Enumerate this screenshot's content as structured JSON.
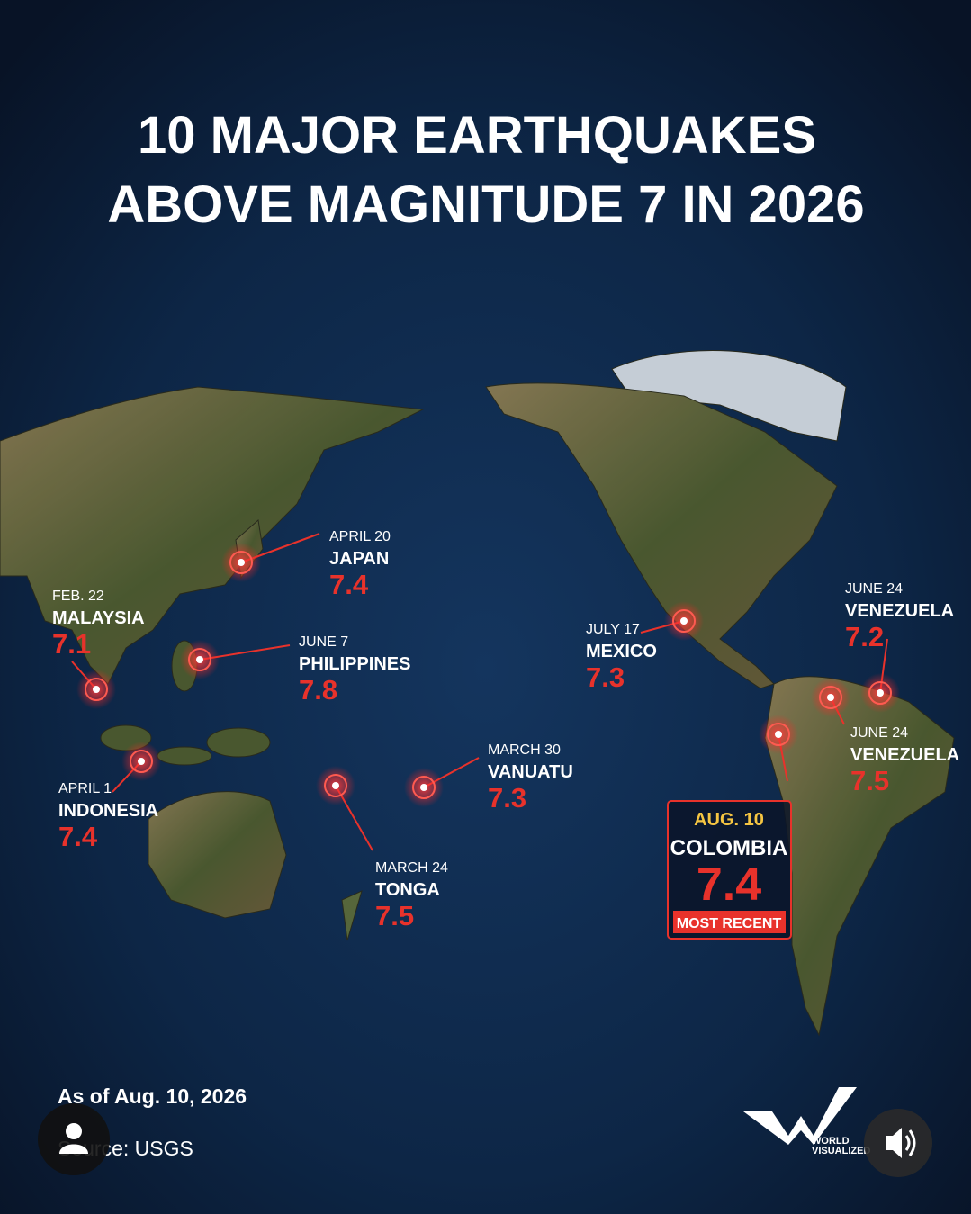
{
  "title": [
    "10 MAJOR EARTHQUAKES",
    "ABOVE MAGNITUDE 7 IN 2026"
  ],
  "quakes": [
    {
      "date": "APRIL 20",
      "country": "JAPAN",
      "magnitude": 7.4
    },
    {
      "date": "FEB. 22",
      "country": "MALAYSIA",
      "magnitude": 7.1
    },
    {
      "date": "JUNE 7",
      "country": "PHILIPPINES",
      "magnitude": 7.8
    },
    {
      "date": "APRIL 1",
      "country": "INDONESIA",
      "magnitude": 7.4
    },
    {
      "date": "MARCH 24",
      "country": "TONGA",
      "magnitude": 7.5
    },
    {
      "date": "MARCH 30",
      "country": "VANUATU",
      "magnitude": 7.3
    },
    {
      "date": "JULY 17",
      "country": "MEXICO",
      "magnitude": 7.3
    },
    {
      "date": "JUNE 24",
      "country": "VENEZUELA",
      "magnitude": 7.2
    },
    {
      "date": "JUNE 24",
      "country": "VENEZUELA",
      "magnitude": 7.5
    },
    {
      "date": "AUG. 10",
      "country": "COLOMBIA",
      "magnitude": 7.4,
      "badge": "MOST RECENT"
    }
  ],
  "footer": {
    "as_of": "As of Aug. 10, 2026",
    "source": "Source: USGS"
  },
  "logo": [
    "WORLD",
    "VISUALIZED"
  ]
}
